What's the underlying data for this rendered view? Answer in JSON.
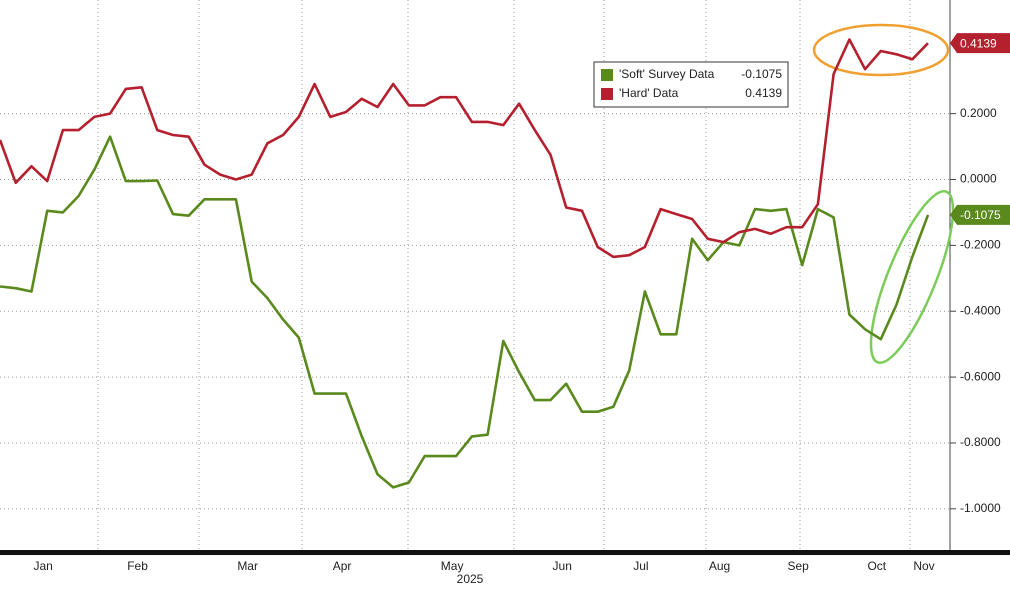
{
  "chart_data": {
    "type": "line",
    "categories": [
      null,
      null,
      null,
      "Jan",
      null,
      null,
      null,
      null,
      null,
      "Feb",
      null,
      null,
      null,
      null,
      null,
      null,
      "Mar",
      null,
      null,
      null,
      null,
      null,
      "Apr",
      null,
      null,
      null,
      null,
      null,
      null,
      "May",
      null,
      null,
      null,
      null,
      null,
      null,
      "Jun",
      null,
      null,
      null,
      null,
      "Jul",
      null,
      null,
      null,
      null,
      "Aug",
      null,
      null,
      null,
      null,
      "Sep",
      null,
      null,
      null,
      null,
      "Oct",
      null,
      null,
      "Nov"
    ],
    "x_label": "2025",
    "series": [
      {
        "name": "'Soft' Survey Data",
        "color": "#5a8a1e",
        "values": [
          -0.325,
          -0.33,
          -0.34,
          -0.095,
          -0.1,
          -0.05,
          0.03,
          0.13,
          -0.005,
          -0.005,
          -0.003,
          -0.105,
          -0.11,
          -0.06,
          -0.06,
          -0.06,
          -0.31,
          -0.36,
          -0.425,
          -0.48,
          -0.65,
          -0.65,
          -0.65,
          -0.78,
          -0.895,
          -0.935,
          -0.92,
          -0.84,
          -0.84,
          -0.84,
          -0.78,
          -0.775,
          -0.49,
          -0.585,
          -0.67,
          -0.67,
          -0.62,
          -0.705,
          -0.705,
          -0.69,
          -0.58,
          -0.34,
          -0.47,
          -0.47,
          -0.18,
          -0.245,
          -0.19,
          -0.2,
          -0.09,
          -0.095,
          -0.09,
          -0.26,
          -0.09,
          -0.115,
          -0.41,
          -0.455,
          -0.485,
          -0.38,
          -0.235,
          -0.1075
        ]
      },
      {
        "name": "'Hard' Data",
        "color": "#b5202e",
        "values": [
          0.12,
          -0.01,
          0.04,
          -0.005,
          0.15,
          0.15,
          0.19,
          0.2,
          0.275,
          0.28,
          0.15,
          0.135,
          0.13,
          0.045,
          0.015,
          0,
          0.015,
          0.11,
          0.135,
          0.19,
          0.29,
          0.19,
          0.205,
          0.245,
          0.22,
          0.29,
          0.225,
          0.225,
          0.25,
          0.25,
          0.175,
          0.175,
          0.165,
          0.23,
          0.15,
          0.075,
          -0.085,
          -0.095,
          -0.205,
          -0.235,
          -0.23,
          -0.205,
          -0.09,
          -0.105,
          -0.12,
          -0.18,
          -0.19,
          -0.16,
          -0.15,
          -0.165,
          -0.145,
          -0.145,
          -0.075,
          0.32,
          0.425,
          0.335,
          0.39,
          0.38,
          0.365,
          0.4139
        ]
      }
    ],
    "ylim": [
      -1.125,
      0.545
    ],
    "yticks": [
      {
        "value": 0.2,
        "label": "0.2000"
      },
      {
        "value": 0,
        "label": "0.0000"
      },
      {
        "value": -0.2,
        "label": "-0.2000"
      },
      {
        "value": -0.4,
        "label": "-0.4000"
      },
      {
        "value": -0.6,
        "label": "-0.6000"
      },
      {
        "value": -0.8,
        "label": "-0.8000"
      },
      {
        "value": -1.0,
        "label": "-1.0000"
      }
    ],
    "grid": true
  }
}
